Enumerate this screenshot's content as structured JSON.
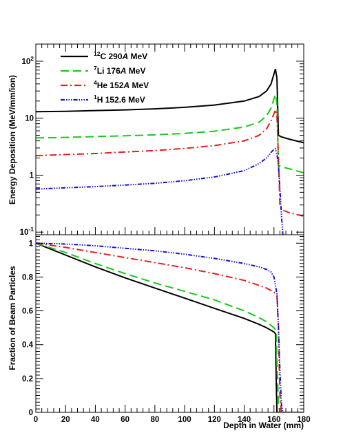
{
  "chart_data": [
    {
      "type": "line",
      "panel": "top",
      "title": "",
      "xlabel": "",
      "ylabel": "Energy Deposition (MeV/mm/ion)",
      "xlim": [
        0,
        180
      ],
      "ylim": [
        0.09,
        200
      ],
      "yscale": "log",
      "y_ticks": [
        "10-1",
        "1",
        "10",
        "102"
      ],
      "grid": false,
      "legend_position": "top-left",
      "series": [
        {
          "name": "12C 290A MeV",
          "legend": {
            "sup": "12",
            "pre": "C 290",
            "unit": "A",
            "post": " MeV"
          },
          "color": "#000000",
          "dash": "",
          "x": [
            0,
            20,
            40,
            60,
            80,
            100,
            120,
            140,
            150,
            155,
            158,
            160,
            161,
            162,
            163,
            165,
            170,
            180
          ],
          "y": [
            13,
            13.2,
            13.6,
            14,
            14.6,
            15.5,
            17,
            20,
            24,
            30,
            40,
            60,
            73,
            50,
            5,
            4.7,
            4.3,
            3.7
          ]
        },
        {
          "name": "7Li 176A MeV",
          "legend": {
            "sup": "7",
            "pre": "Li 176",
            "unit": "A",
            "post": " MeV"
          },
          "color": "#19c819",
          "dash": "12 6",
          "x": [
            0,
            20,
            40,
            60,
            80,
            100,
            120,
            140,
            150,
            155,
            158,
            160,
            161,
            162,
            163,
            165,
            170,
            180
          ],
          "y": [
            4.5,
            4.6,
            4.75,
            4.9,
            5.1,
            5.4,
            5.9,
            7,
            8.5,
            11,
            15,
            22,
            26,
            18,
            1.5,
            1.4,
            1.3,
            1.1
          ]
        },
        {
          "name": "4He 152A MeV",
          "legend": {
            "sup": "4",
            "pre": "He 152",
            "unit": "A",
            "post": " MeV"
          },
          "color": "#e81c1c",
          "dash": "10 4 2 4",
          "x": [
            0,
            20,
            40,
            60,
            80,
            100,
            120,
            140,
            150,
            155,
            158,
            160,
            161,
            162,
            163,
            164,
            165,
            170,
            180
          ],
          "y": [
            2.2,
            2.3,
            2.4,
            2.55,
            2.7,
            2.95,
            3.3,
            4,
            5,
            6.5,
            9,
            12,
            14,
            11,
            2,
            0.3,
            0.25,
            0.22,
            0.19
          ]
        },
        {
          "name": "1H 152.6 MeV",
          "legend": {
            "sup": "1",
            "pre": "H 152.6",
            "unit": "",
            "post": " MeV"
          },
          "color": "#1414d2",
          "dash": "6 2 1.5 2 1.5 2 1.5 2",
          "x": [
            0,
            20,
            40,
            60,
            80,
            100,
            120,
            140,
            150,
            155,
            158,
            160,
            161,
            162,
            163,
            164,
            165,
            166
          ],
          "y": [
            0.57,
            0.6,
            0.63,
            0.67,
            0.72,
            0.8,
            0.93,
            1.2,
            1.6,
            2,
            2.5,
            2.85,
            2.9,
            2.3,
            1.5,
            0.6,
            0.2,
            0.09
          ]
        }
      ]
    },
    {
      "type": "line",
      "panel": "bottom",
      "title": "",
      "xlabel": "Depth in Water (mm)",
      "ylabel": "Fraction of Beam Particles",
      "xlim": [
        0,
        180
      ],
      "ylim": [
        0,
        1.05
      ],
      "x_ticks": [
        0,
        20,
        40,
        60,
        80,
        100,
        120,
        140,
        160,
        180
      ],
      "y_ticks": [
        0,
        0.2,
        0.4,
        0.6,
        0.8,
        1
      ],
      "grid": false,
      "series": [
        {
          "name": "12C 290A MeV",
          "color": "#000000",
          "dash": "",
          "x": [
            0,
            20,
            40,
            60,
            80,
            100,
            120,
            140,
            150,
            155,
            160,
            161,
            161.5,
            162,
            163,
            180
          ],
          "y": [
            1,
            0.93,
            0.86,
            0.795,
            0.735,
            0.675,
            0.615,
            0.555,
            0.52,
            0.5,
            0.475,
            0.465,
            0.2,
            0,
            0,
            0
          ]
        },
        {
          "name": "7Li 176A MeV",
          "color": "#19c819",
          "dash": "12 6",
          "x": [
            0,
            20,
            40,
            60,
            80,
            100,
            120,
            140,
            150,
            155,
            160,
            161.5,
            162,
            163,
            164,
            180
          ],
          "y": [
            1,
            0.945,
            0.88,
            0.82,
            0.765,
            0.715,
            0.665,
            0.6,
            0.56,
            0.535,
            0.5,
            0.48,
            0.3,
            0.05,
            0,
            0
          ]
        },
        {
          "name": "4He 152A MeV",
          "color": "#e81c1c",
          "dash": "10 4 2 4",
          "x": [
            0,
            20,
            40,
            60,
            80,
            100,
            120,
            140,
            150,
            155,
            160,
            162,
            163,
            164,
            165,
            180
          ],
          "y": [
            1,
            0.975,
            0.945,
            0.915,
            0.885,
            0.855,
            0.82,
            0.78,
            0.75,
            0.735,
            0.71,
            0.69,
            0.5,
            0.1,
            0,
            0
          ]
        },
        {
          "name": "1H 152.6 MeV",
          "color": "#1414d2",
          "dash": "6 2 1.5 2 1.5 2 1.5 2",
          "x": [
            0,
            20,
            40,
            60,
            80,
            100,
            120,
            140,
            150,
            155,
            158,
            160,
            162,
            163,
            164,
            165,
            166,
            180
          ],
          "y": [
            1,
            0.995,
            0.985,
            0.97,
            0.955,
            0.935,
            0.91,
            0.88,
            0.86,
            0.845,
            0.83,
            0.8,
            0.7,
            0.5,
            0.25,
            0.05,
            0,
            0
          ]
        }
      ]
    }
  ]
}
